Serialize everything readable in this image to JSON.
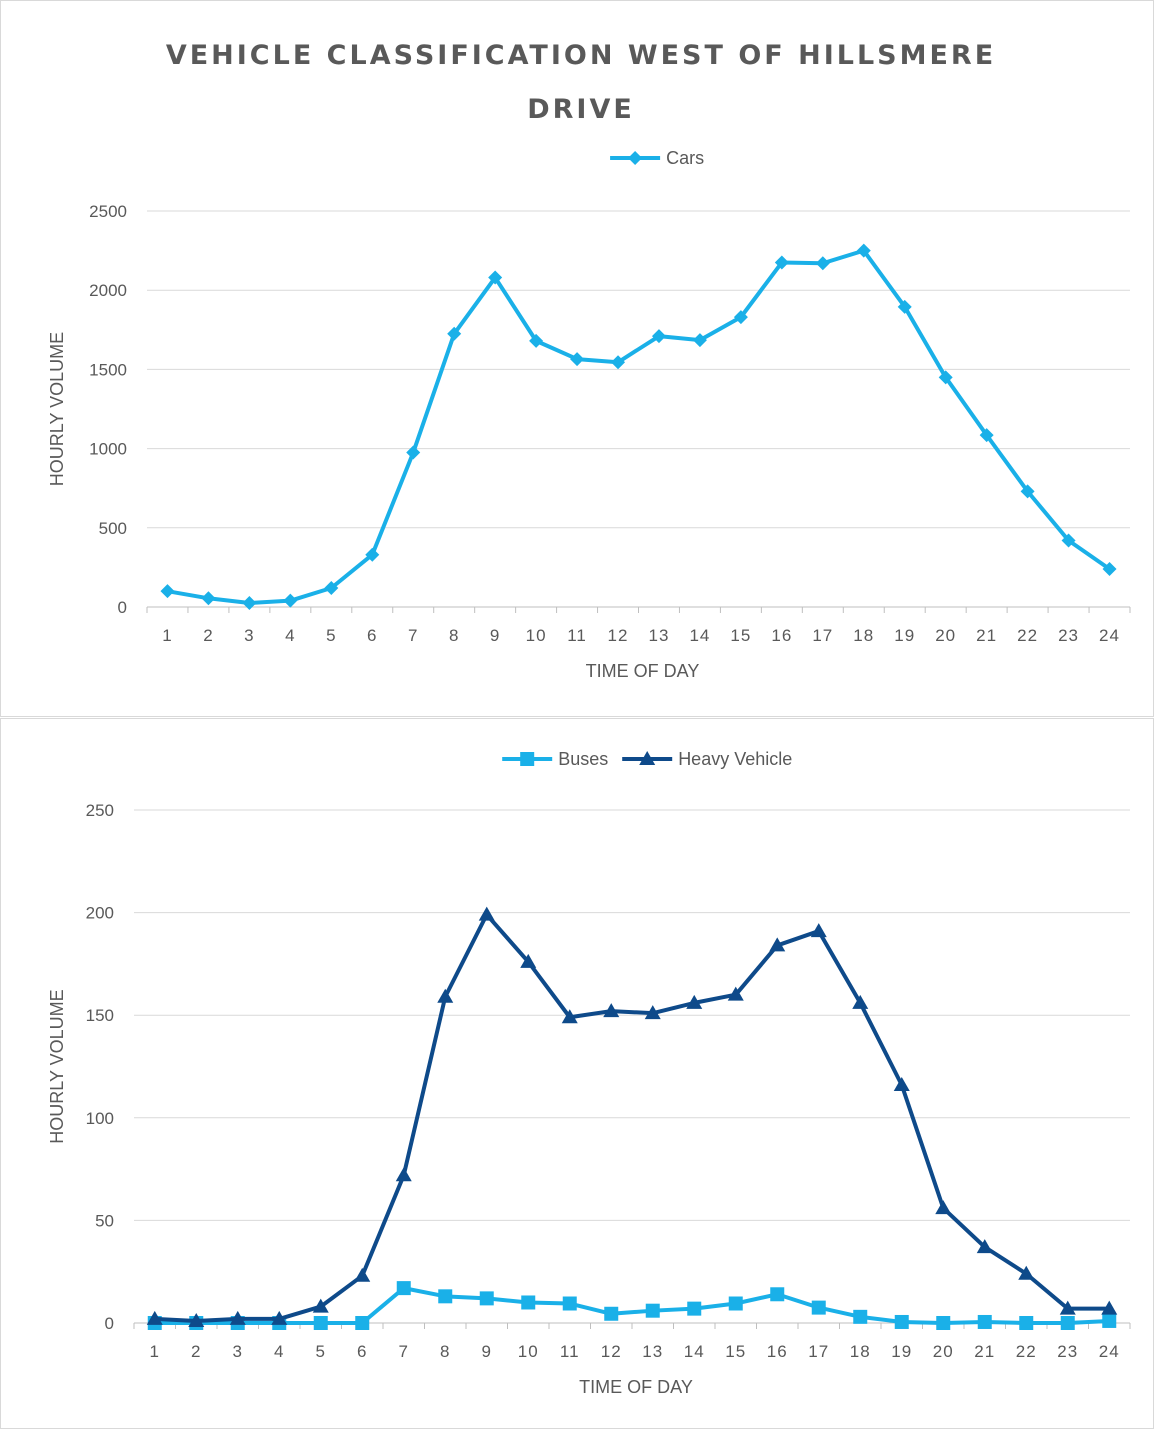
{
  "chart_data": [
    {
      "type": "line",
      "title_lines": [
        "VEHICLE CLASSIFICATION WEST OF HILLSMERE",
        "DRIVE"
      ],
      "xlabel": "TIME OF DAY",
      "ylabel": "HOURLY VOLUME",
      "ylim": [
        0,
        2500
      ],
      "yticks": [
        0,
        500,
        1000,
        1500,
        2000,
        2500
      ],
      "categories": [
        "1",
        "2",
        "3",
        "4",
        "5",
        "6",
        "7",
        "8",
        "9",
        "10",
        "11",
        "12",
        "13",
        "14",
        "15",
        "16",
        "17",
        "18",
        "19",
        "20",
        "21",
        "22",
        "23",
        "24"
      ],
      "legend_position": "top",
      "grid": true,
      "series": [
        {
          "name": "Cars",
          "color": "#1ab0e8",
          "marker": "diamond",
          "values": [
            100,
            55,
            25,
            40,
            120,
            330,
            975,
            1725,
            2080,
            1680,
            1565,
            1545,
            1710,
            1685,
            1830,
            2175,
            2170,
            2250,
            1895,
            1450,
            1085,
            730,
            420,
            240
          ]
        }
      ]
    },
    {
      "type": "line",
      "xlabel": "TIME OF DAY",
      "ylabel": "HOURLY VOLUME",
      "ylim": [
        0,
        250
      ],
      "yticks": [
        0,
        50,
        100,
        150,
        200,
        250
      ],
      "categories": [
        "1",
        "2",
        "3",
        "4",
        "5",
        "6",
        "7",
        "8",
        "9",
        "10",
        "11",
        "12",
        "13",
        "14",
        "15",
        "16",
        "17",
        "18",
        "19",
        "20",
        "21",
        "22",
        "23",
        "24"
      ],
      "legend_position": "top",
      "grid": true,
      "series": [
        {
          "name": "Buses",
          "color": "#1ab0e8",
          "marker": "square",
          "values": [
            0,
            0,
            0,
            0,
            0,
            0,
            17,
            13,
            12,
            10,
            9.5,
            4.5,
            6,
            7,
            9.5,
            14,
            7.5,
            3,
            0.5,
            0,
            0.5,
            0,
            0,
            1
          ]
        },
        {
          "name": "Heavy Vehicle",
          "color": "#0e4a8a",
          "marker": "triangle",
          "values": [
            2,
            1,
            2,
            2,
            8,
            23,
            72,
            159,
            199,
            176,
            149,
            152,
            151,
            156,
            160,
            184,
            191,
            156,
            116,
            56,
            37,
            24,
            7,
            7
          ]
        }
      ]
    }
  ]
}
